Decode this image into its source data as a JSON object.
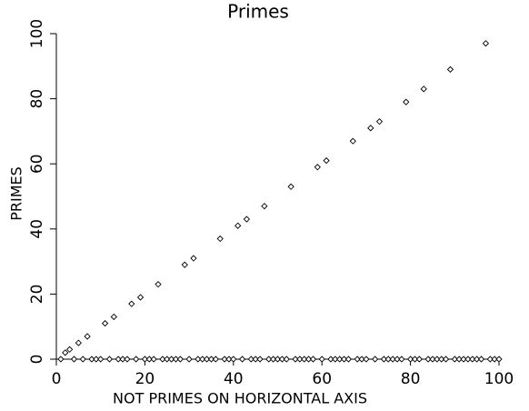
{
  "chart_data": {
    "type": "scatter",
    "title": "Primes",
    "x_label": "NOT PRIMES ON HORIZONTAL AXIS",
    "y_label": "PRIMES",
    "x": [
      1,
      2,
      3,
      4,
      5,
      6,
      7,
      8,
      9,
      10,
      11,
      12,
      13,
      14,
      15,
      16,
      17,
      18,
      19,
      20,
      21,
      22,
      23,
      24,
      25,
      26,
      27,
      28,
      29,
      30,
      31,
      32,
      33,
      34,
      35,
      36,
      37,
      38,
      39,
      40,
      41,
      42,
      43,
      44,
      45,
      46,
      47,
      48,
      49,
      50,
      51,
      52,
      53,
      54,
      55,
      56,
      57,
      58,
      59,
      60,
      61,
      62,
      63,
      64,
      65,
      66,
      67,
      68,
      69,
      70,
      71,
      72,
      73,
      74,
      75,
      76,
      77,
      78,
      79,
      80,
      81,
      82,
      83,
      84,
      85,
      86,
      87,
      88,
      89,
      90,
      91,
      92,
      93,
      94,
      95,
      96,
      97,
      98,
      99,
      100
    ],
    "values": [
      0,
      2,
      3,
      0,
      5,
      0,
      7,
      0,
      0,
      0,
      11,
      0,
      13,
      0,
      0,
      0,
      17,
      0,
      19,
      0,
      0,
      0,
      23,
      0,
      0,
      0,
      0,
      0,
      29,
      0,
      31,
      0,
      0,
      0,
      0,
      0,
      37,
      0,
      0,
      0,
      41,
      0,
      43,
      0,
      0,
      0,
      47,
      0,
      0,
      0,
      0,
      0,
      53,
      0,
      0,
      0,
      0,
      0,
      59,
      0,
      61,
      0,
      0,
      0,
      0,
      0,
      67,
      0,
      0,
      0,
      71,
      0,
      73,
      0,
      0,
      0,
      0,
      0,
      79,
      0,
      0,
      0,
      83,
      0,
      0,
      0,
      0,
      0,
      89,
      0,
      0,
      0,
      0,
      0,
      0,
      0,
      97,
      0,
      0,
      0
    ],
    "color": "#000000",
    "xlim": [
      0,
      100
    ],
    "xticks": [
      0,
      20,
      40,
      60,
      80,
      100
    ],
    "ylim": [
      0,
      100
    ],
    "yticks": [
      0,
      20,
      40,
      60,
      80,
      100
    ]
  }
}
